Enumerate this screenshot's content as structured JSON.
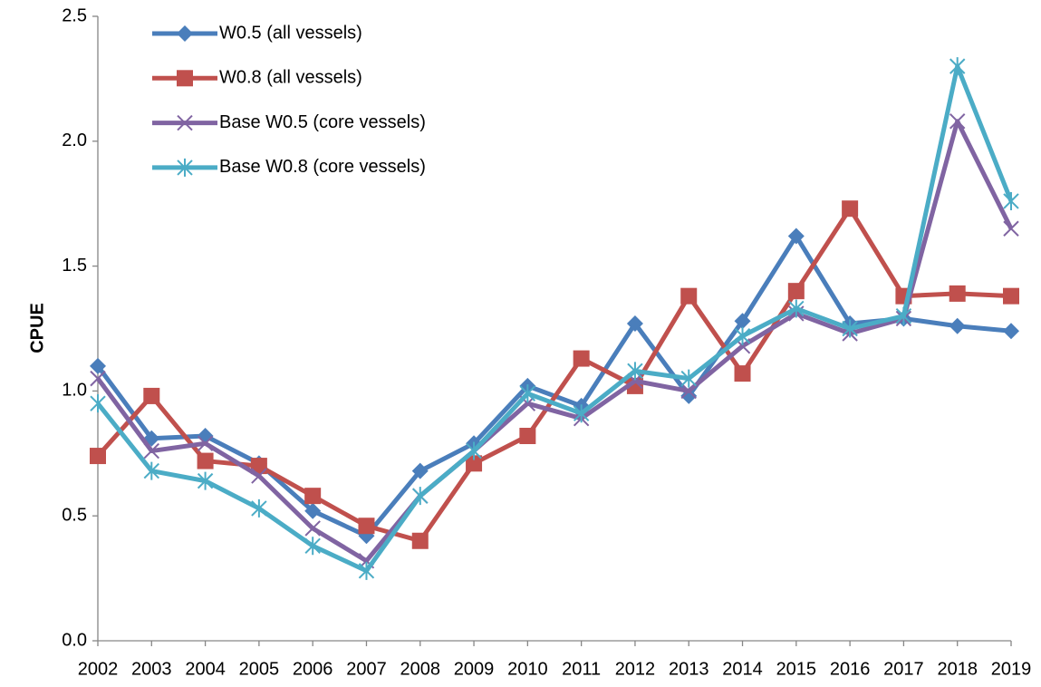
{
  "chart_data": {
    "type": "line",
    "y_label": "CPUE",
    "categories": [
      "2002",
      "2003",
      "2004",
      "2005",
      "2006",
      "2007",
      "2008",
      "2009",
      "2010",
      "2011",
      "2012",
      "2013",
      "2014",
      "2015",
      "2016",
      "2017",
      "2018",
      "2019"
    ],
    "series": [
      {
        "name": "W0.5 (all vessels)",
        "color": "#4a7ebb",
        "marker": "diamond",
        "values": [
          1.1,
          0.81,
          0.82,
          0.71,
          0.52,
          0.42,
          0.68,
          0.79,
          1.02,
          0.94,
          1.27,
          0.98,
          1.28,
          1.62,
          1.27,
          1.29,
          1.26,
          1.24
        ]
      },
      {
        "name": "W0.8 (all vessels)",
        "color": "#c0504d",
        "marker": "square",
        "values": [
          0.74,
          0.98,
          0.72,
          0.7,
          0.58,
          0.46,
          0.4,
          0.71,
          0.82,
          1.13,
          1.02,
          1.38,
          1.07,
          1.4,
          1.73,
          1.38,
          1.39,
          1.38
        ]
      },
      {
        "name": "Base W0.5 (core vessels)",
        "color": "#8064a2",
        "marker": "x",
        "values": [
          1.05,
          0.76,
          0.79,
          0.66,
          0.45,
          0.32,
          0.58,
          0.76,
          0.95,
          0.89,
          1.04,
          1.0,
          1.18,
          1.31,
          1.23,
          1.29,
          2.08,
          1.65
        ]
      },
      {
        "name": "Base W0.8 (core vessels)",
        "color": "#4bacc6",
        "marker": "star",
        "values": [
          0.95,
          0.68,
          0.64,
          0.53,
          0.38,
          0.28,
          0.58,
          0.76,
          0.99,
          0.91,
          1.08,
          1.05,
          1.22,
          1.33,
          1.25,
          1.3,
          2.3,
          1.76
        ]
      }
    ],
    "ylim": [
      0,
      2.5
    ],
    "yticks": [
      {
        "value": 0,
        "label": "0.0"
      },
      0.5,
      {
        "value": 1,
        "label": "1.0"
      },
      1.5,
      {
        "value": 2,
        "label": "2.0"
      },
      2.5
    ],
    "grid": false,
    "legend": "top-left"
  }
}
